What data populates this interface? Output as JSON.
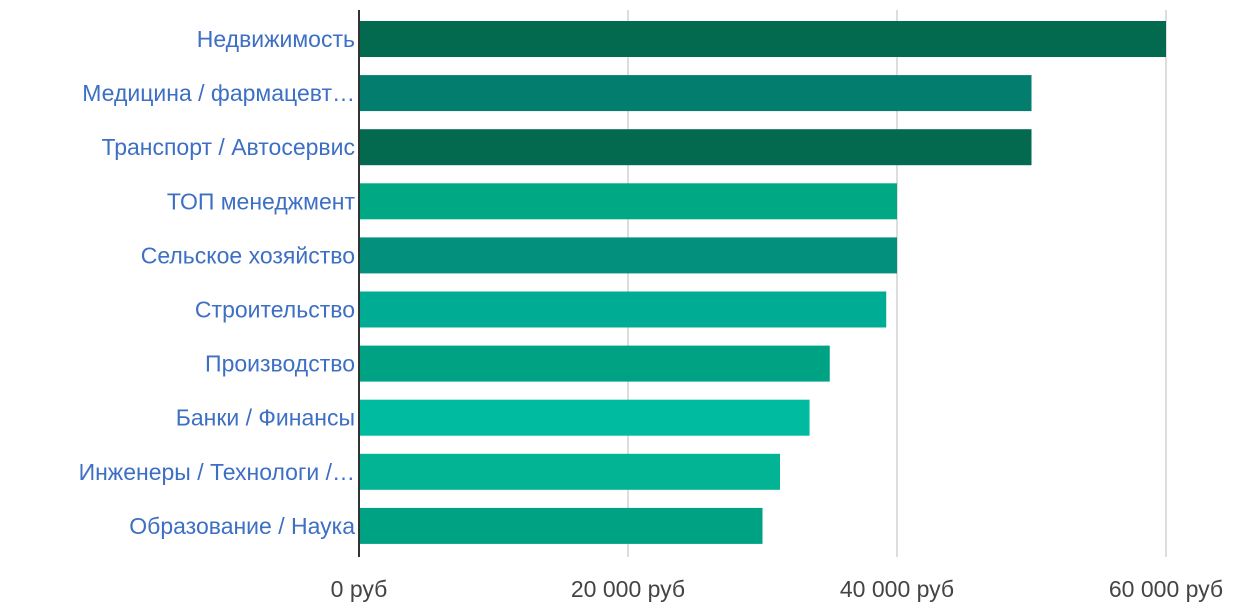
{
  "chart_data": {
    "type": "bar",
    "orientation": "horizontal",
    "categories": [
      "Недвижимость",
      "Медицина / фармацевт…",
      "Транспорт / Автосервис",
      "ТОП менеджмент",
      "Сельское хозяйство",
      "Строительство",
      "Производство",
      "Банки / Финансы",
      "Инженеры / Технологи /…",
      "Образование / Наука"
    ],
    "values": [
      60000,
      50000,
      50000,
      40000,
      40000,
      39200,
      35000,
      33500,
      31300,
      30000
    ],
    "bar_colors": [
      "#036a50",
      "#037e6e",
      "#036a50",
      "#00a884",
      "#03917e",
      "#00ad94",
      "#00a284",
      "#00bb9f",
      "#02b394",
      "#00a284"
    ],
    "xlim": [
      0,
      60000
    ],
    "xticks": [
      0,
      20000,
      40000,
      60000
    ],
    "xtick_labels": [
      "0 руб",
      "20 000 руб",
      "40 000 руб",
      "60 000 руб"
    ],
    "grid": true,
    "label_color": "#3d6fc4",
    "grid_color": "#dddddd",
    "axis_color": "#333333"
  }
}
